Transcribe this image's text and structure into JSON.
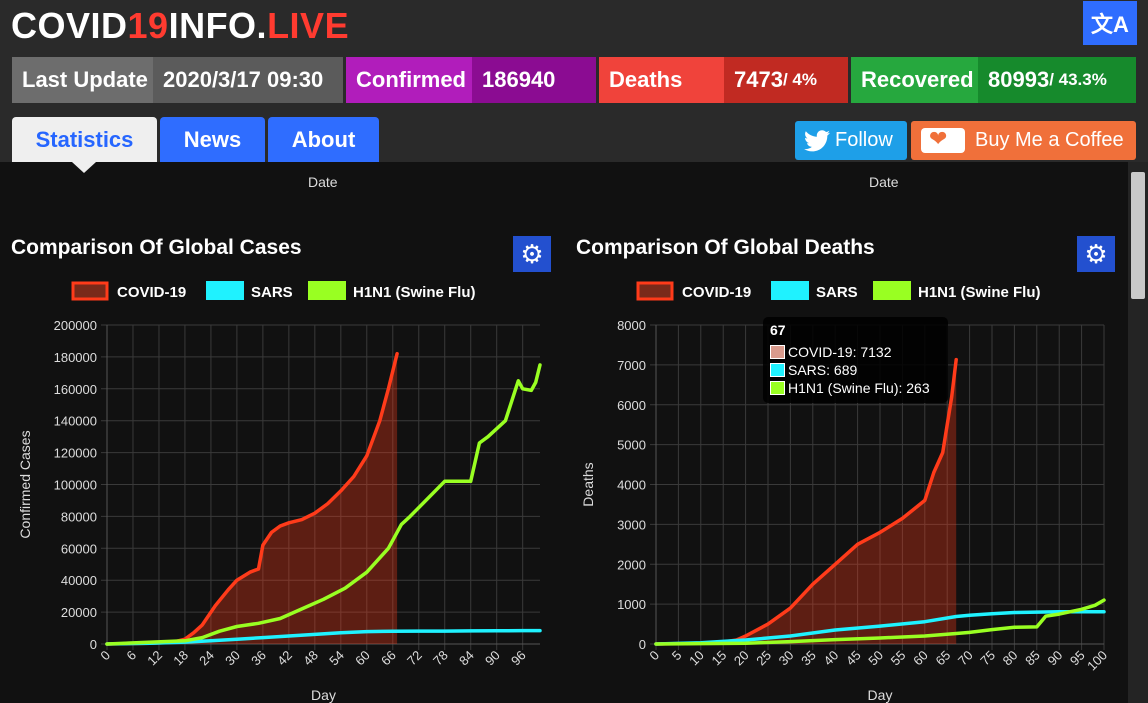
{
  "header": {
    "logo_main": "COVID",
    "logo_red": "19",
    "logo_mid": "INFO.",
    "logo_tail": "LIVE",
    "translate_icon": "translate-icon",
    "translate_glyph": "文A"
  },
  "stats": {
    "last_update_label": "Last Update",
    "last_update_value": "2020/3/17 09:30",
    "confirmed_label": "Confirmed",
    "confirmed_value": "186940",
    "deaths_label": "Deaths",
    "deaths_value": "7473",
    "deaths_pct": " / 4%",
    "recovered_label": "Recovered",
    "recovered_value": "80993",
    "recovered_pct": " / 43.3%"
  },
  "tabs": {
    "statistics": "Statistics",
    "news": "News",
    "about": "About"
  },
  "social": {
    "follow": "Follow",
    "coffee": "Buy Me a Coffee"
  },
  "prev_charts": {
    "date_label_left": "Date",
    "date_label_right": "Date"
  },
  "colors": {
    "covid": "#ff3b1a",
    "sars": "#1ff2ff",
    "h1n1": "#99ff22",
    "confirmed": "#a014a6",
    "deaths": "#e8332b",
    "recovered": "#21a03a"
  },
  "tooltip": {
    "title": "67",
    "rows": [
      "COVID-19: 7132",
      "SARS: 689",
      "H1N1 (Swine Flu): 263"
    ]
  },
  "chart_data": [
    {
      "type": "line",
      "title": "Comparison Of Global Cases",
      "xlabel": "Day",
      "ylabel": "Confirmed Cases",
      "xlim": [
        0,
        100
      ],
      "ylim": [
        0,
        200000
      ],
      "x_ticks": [
        0,
        6,
        12,
        18,
        24,
        30,
        36,
        42,
        48,
        54,
        60,
        66,
        72,
        78,
        84,
        90,
        96
      ],
      "y_ticks": [
        0,
        20000,
        40000,
        60000,
        80000,
        100000,
        120000,
        140000,
        160000,
        180000,
        200000
      ],
      "grid": true,
      "legend": "top",
      "series": [
        {
          "name": "COVID-19",
          "fill": true,
          "x": [
            0,
            10,
            15,
            18,
            20,
            22,
            25,
            28,
            30,
            33,
            35,
            36,
            38,
            40,
            42,
            45,
            48,
            51,
            54,
            57,
            60,
            63,
            65,
            67
          ],
          "y": [
            0,
            500,
            1000,
            3000,
            7000,
            12000,
            24000,
            34000,
            40000,
            45000,
            47000,
            62000,
            70000,
            74000,
            76000,
            78000,
            82000,
            88000,
            96000,
            105000,
            118000,
            140000,
            160000,
            182000
          ]
        },
        {
          "name": "SARS",
          "x": [
            0,
            10,
            18,
            24,
            30,
            36,
            42,
            48,
            54,
            60,
            66,
            72,
            78,
            84,
            90,
            96,
            100
          ],
          "y": [
            0,
            500,
            1200,
            2000,
            3000,
            4000,
            5000,
            6000,
            7000,
            7800,
            8000,
            8100,
            8100,
            8200,
            8300,
            8400,
            8400
          ]
        },
        {
          "name": "H1N1 (Swine Flu)",
          "x": [
            0,
            18,
            22,
            26,
            30,
            35,
            40,
            45,
            50,
            55,
            60,
            65,
            68,
            70,
            74,
            78,
            84,
            86,
            88,
            92,
            95,
            96,
            98,
            99,
            100
          ],
          "y": [
            0,
            2000,
            4000,
            8000,
            11000,
            13000,
            16000,
            22000,
            28000,
            35000,
            45000,
            60000,
            75000,
            80000,
            91000,
            102000,
            102000,
            126000,
            130000,
            140000,
            165000,
            160000,
            159000,
            164000,
            175000
          ]
        }
      ]
    },
    {
      "type": "line",
      "title": "Comparison Of Global Deaths",
      "xlabel": "Day",
      "ylabel": "Deaths",
      "xlim": [
        0,
        100
      ],
      "ylim": [
        0,
        8000
      ],
      "x_ticks": [
        0,
        5,
        10,
        15,
        20,
        25,
        30,
        35,
        40,
        45,
        50,
        55,
        60,
        65,
        70,
        75,
        80,
        85,
        90,
        95,
        100
      ],
      "y_ticks": [
        0,
        1000,
        2000,
        3000,
        4000,
        5000,
        6000,
        7000,
        8000
      ],
      "grid": true,
      "legend": "top",
      "series": [
        {
          "name": "COVID-19",
          "fill": true,
          "x": [
            0,
            10,
            15,
            18,
            20,
            25,
            30,
            35,
            40,
            45,
            50,
            55,
            60,
            62,
            64,
            66,
            67
          ],
          "y": [
            0,
            20,
            50,
            100,
            200,
            500,
            900,
            1500,
            2000,
            2500,
            2800,
            3150,
            3600,
            4300,
            4800,
            6200,
            7132
          ]
        },
        {
          "name": "SARS",
          "x": [
            0,
            10,
            20,
            30,
            40,
            50,
            60,
            67,
            70,
            75,
            80,
            85,
            90,
            95,
            100
          ],
          "y": [
            0,
            30,
            100,
            200,
            350,
            450,
            560,
            689,
            720,
            760,
            790,
            800,
            810,
            810,
            810
          ]
        },
        {
          "name": "H1N1 (Swine Flu)",
          "x": [
            0,
            20,
            30,
            40,
            50,
            60,
            67,
            70,
            75,
            80,
            85,
            87,
            90,
            95,
            98,
            100
          ],
          "y": [
            0,
            20,
            60,
            110,
            150,
            200,
            263,
            290,
            360,
            420,
            430,
            700,
            750,
            870,
            970,
            1100
          ]
        }
      ]
    }
  ]
}
